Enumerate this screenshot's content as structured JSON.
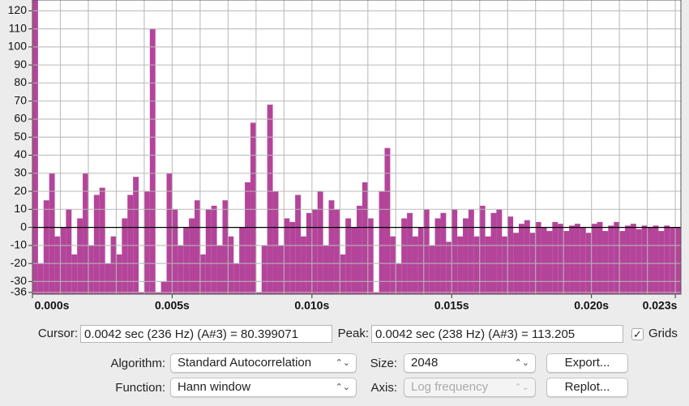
{
  "chart_data": {
    "type": "bar",
    "color": "#b4449a",
    "grid": true,
    "xlim": [
      0,
      0.0232
    ],
    "ylim": [
      -37,
      126
    ],
    "xticks": [
      {
        "value": 0,
        "label": "0.000s"
      },
      {
        "value": 0.005,
        "label": "0.005s"
      },
      {
        "value": 0.01,
        "label": "0.010s"
      },
      {
        "value": 0.015,
        "label": "0.015s"
      },
      {
        "value": 0.02,
        "label": "0.020s"
      },
      {
        "value": 0.023,
        "label": "0.023s"
      }
    ],
    "xgrid": [
      0,
      0.001,
      0.002,
      0.003,
      0.004,
      0.005,
      0.006,
      0.007,
      0.008,
      0.009,
      0.01,
      0.011,
      0.012,
      0.013,
      0.014,
      0.015,
      0.016,
      0.017,
      0.018,
      0.019,
      0.02,
      0.021,
      0.022,
      0.023
    ],
    "yticks": [
      -36,
      -30,
      -20,
      -10,
      0,
      10,
      20,
      30,
      40,
      50,
      60,
      70,
      80,
      90,
      100,
      110,
      120
    ],
    "x": [
      0,
      0.0002,
      0.0004,
      0.0006,
      0.0008,
      0.001,
      0.0012,
      0.0014,
      0.0016,
      0.0018,
      0.002,
      0.0022,
      0.0024,
      0.0026,
      0.0028,
      0.003,
      0.0032,
      0.0034,
      0.0036,
      0.0038,
      0.004,
      0.0042,
      0.0044,
      0.0046,
      0.0048,
      0.005,
      0.0052,
      0.0054,
      0.0056,
      0.0058,
      0.006,
      0.0062,
      0.0064,
      0.0066,
      0.0068,
      0.007,
      0.0072,
      0.0074,
      0.0076,
      0.0078,
      0.008,
      0.0082,
      0.0084,
      0.0086,
      0.0088,
      0.009,
      0.0092,
      0.0094,
      0.0096,
      0.0098,
      0.01,
      0.0102,
      0.0104,
      0.0106,
      0.0108,
      0.011,
      0.0112,
      0.0114,
      0.0116,
      0.0118,
      0.012,
      0.0122,
      0.0124,
      0.0126,
      0.0128,
      0.013,
      0.0132,
      0.0134,
      0.0136,
      0.0138,
      0.014,
      0.0142,
      0.0144,
      0.0146,
      0.0148,
      0.015,
      0.0152,
      0.0154,
      0.0156,
      0.0158,
      0.016,
      0.0162,
      0.0164,
      0.0166,
      0.0168,
      0.017,
      0.0172,
      0.0174,
      0.0176,
      0.0178,
      0.018,
      0.0182,
      0.0184,
      0.0186,
      0.0188,
      0.019,
      0.0192,
      0.0194,
      0.0196,
      0.0198,
      0.02,
      0.0202,
      0.0204,
      0.0206,
      0.0208,
      0.021,
      0.0212,
      0.0214,
      0.0216,
      0.0218,
      0.022,
      0.0222,
      0.0224,
      0.0226,
      0.0228,
      0.023
    ],
    "values": [
      126,
      -20,
      15,
      30,
      -5,
      0,
      10,
      -15,
      5,
      30,
      -10,
      18,
      22,
      -20,
      -5,
      -15,
      5,
      18,
      28,
      -36,
      20,
      110,
      -36,
      -30,
      30,
      10,
      -10,
      0,
      5,
      15,
      -15,
      10,
      12,
      -10,
      15,
      -5,
      -20,
      0,
      25,
      58,
      -36,
      -10,
      68,
      20,
      -10,
      5,
      3,
      18,
      -5,
      8,
      10,
      20,
      -10,
      15,
      10,
      -15,
      5,
      0,
      12,
      25,
      5,
      -36,
      20,
      44,
      -5,
      -20,
      5,
      8,
      -5,
      0,
      10,
      -10,
      5,
      8,
      -8,
      10,
      -5,
      5,
      10,
      -5,
      12,
      -5,
      8,
      10,
      -5,
      6,
      -3,
      2,
      4,
      -3,
      3,
      0,
      -2,
      3,
      2,
      -2,
      1,
      2,
      0,
      -3,
      2,
      3,
      -2,
      1,
      3,
      -2,
      1,
      2,
      -1,
      1,
      0,
      1,
      -2,
      1,
      0,
      0
    ]
  },
  "controls": {
    "cursor_label": "Cursor:",
    "cursor_value": "0.0042 sec (236 Hz) (A#3) = 80.399071",
    "peak_label": "Peak:",
    "peak_value": "0.0042 sec (238 Hz) (A#3) = 113.205",
    "grids_label": "Grids",
    "grids_checked": true,
    "algorithm_label": "Algorithm:",
    "algorithm": "Standard Autocorrelation",
    "size_label": "Size:",
    "size": "2048",
    "export": "Export...",
    "function_label": "Function:",
    "function": "Hann window",
    "axis_label": "Axis:",
    "axis": "Log frequency",
    "replot": "Replot..."
  }
}
